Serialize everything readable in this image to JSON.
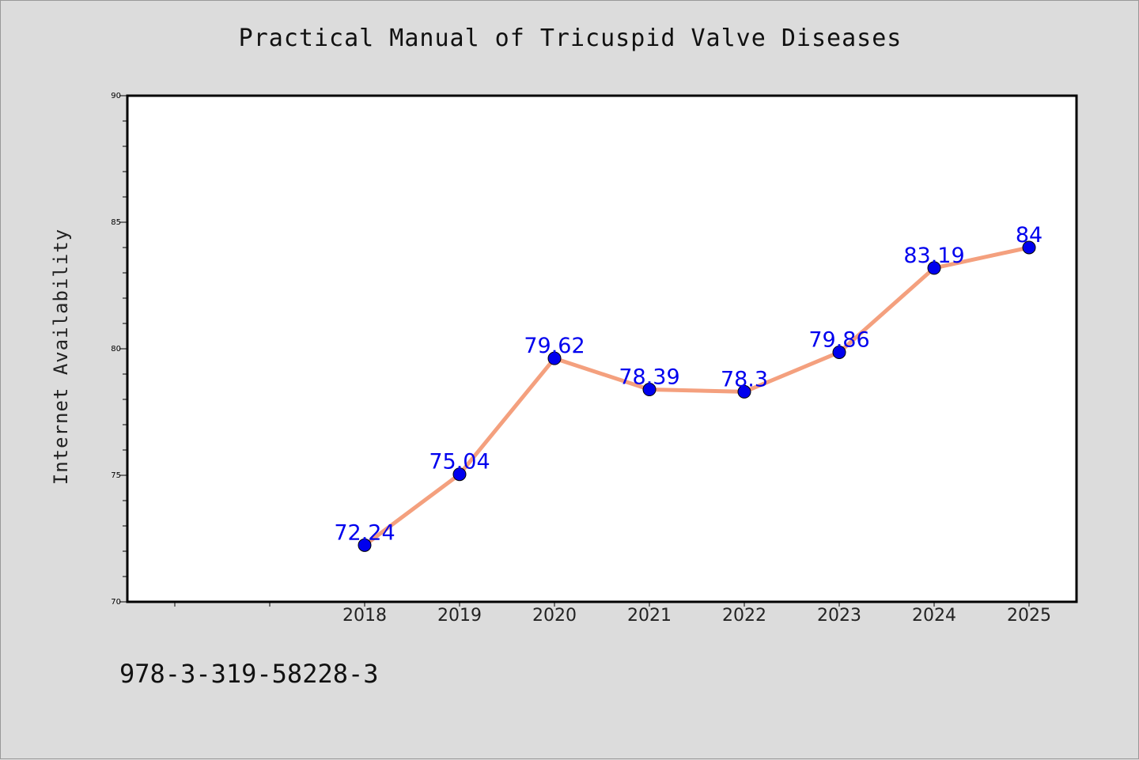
{
  "chart_data": {
    "type": "line",
    "title": "Practical Manual of Tricuspid Valve Diseases",
    "xlabel": "",
    "ylabel": "Internet Availability",
    "categories": [
      "2018",
      "2019",
      "2020",
      "2021",
      "2022",
      "2023",
      "2024",
      "2025"
    ],
    "values": [
      72.24,
      75.04,
      79.62,
      78.39,
      78.3,
      79.86,
      83.19,
      84
    ],
    "data_labels": [
      "72.24",
      "75.04",
      "79.62",
      "78.39",
      "78.3",
      "79.86",
      "83.19",
      "84"
    ],
    "ylim": [
      70,
      90
    ],
    "yticks": [
      "70",
      "75",
      "80",
      "85",
      "90"
    ],
    "grid": false,
    "line_color": "#f4a07e",
    "marker_color": "#0000ee",
    "label_color": "#0000ee"
  },
  "footer": {
    "code": "978-3-319-58228-3"
  }
}
